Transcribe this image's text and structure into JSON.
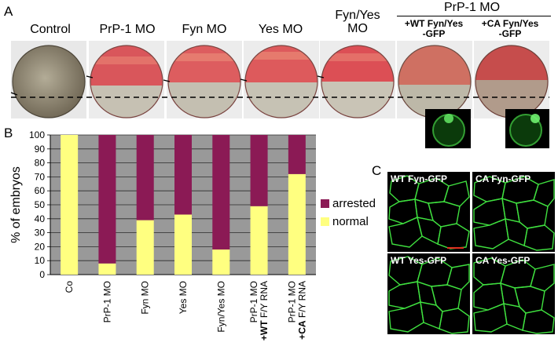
{
  "panels": {
    "a": "A",
    "b": "B",
    "c": "C"
  },
  "panel_a": {
    "columns": [
      {
        "label": "Control"
      },
      {
        "label": "PrP-1 MO"
      },
      {
        "label": "Fyn MO"
      },
      {
        "label": "Yes MO"
      },
      {
        "label_lines": [
          "Fyn/Yes",
          "MO"
        ]
      },
      {
        "label_lines": [
          "+WT Fyn/Yes",
          "-GFP"
        ]
      },
      {
        "label_lines": [
          "+CA Fyn/Yes",
          "-GFP"
        ]
      }
    ],
    "group_title": "PrP-1 MO"
  },
  "chart_data": {
    "type": "bar",
    "stacked": true,
    "ylabel": "% of embryos",
    "ylim": [
      0,
      100
    ],
    "yticks": [
      0,
      10,
      20,
      30,
      40,
      50,
      60,
      70,
      80,
      90,
      100
    ],
    "grid": true,
    "legend_position": "right",
    "categories": [
      {
        "lines": [
          {
            "text": "Co",
            "bold": false
          }
        ]
      },
      {
        "lines": [
          {
            "text": "PrP-1 MO",
            "bold": false
          }
        ]
      },
      {
        "lines": [
          {
            "text": "Fyn MO",
            "bold": false
          }
        ]
      },
      {
        "lines": [
          {
            "text": "Yes MO",
            "bold": false
          }
        ]
      },
      {
        "lines": [
          {
            "text": "Fyn/Yes MO",
            "bold": false
          }
        ]
      },
      {
        "lines": [
          {
            "text": "PrP-1 MO",
            "bold": false
          },
          {
            "text": "+WT",
            "bold": true,
            "suffix": " F/Y RNA"
          }
        ]
      },
      {
        "lines": [
          {
            "text": "PrP-1 MO",
            "bold": false
          },
          {
            "text": "+CA",
            "bold": true,
            "suffix": " F/Y RNA"
          }
        ]
      }
    ],
    "series": [
      {
        "name": "normal",
        "color": "#ffff80",
        "values": [
          100,
          8,
          39,
          43,
          18,
          49,
          72
        ]
      },
      {
        "name": "arrested",
        "color": "#8b1a55",
        "values": [
          0,
          92,
          61,
          57,
          82,
          51,
          28
        ]
      }
    ],
    "legend_order": [
      "arrested",
      "normal"
    ],
    "plot_background": "#999999"
  },
  "panel_c": {
    "tiles": [
      {
        "label": "WT Fyn-GFP"
      },
      {
        "label": "CA Fyn-GFP"
      },
      {
        "label": "WT Yes-GFP"
      },
      {
        "label": "CA Yes-GFP"
      }
    ]
  }
}
